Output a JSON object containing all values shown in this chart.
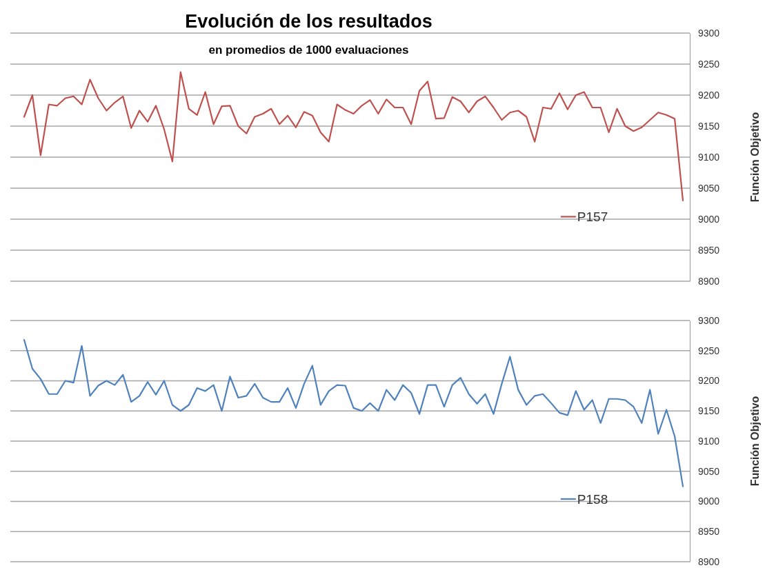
{
  "chart_data": [
    {
      "type": "line",
      "title": "Evolución de los resultados",
      "subtitle": "en promedios de 1000 evaluaciones",
      "ylabel": "Función Objetivo",
      "categories": [
        null,
        null,
        null,
        null,
        null,
        null,
        null,
        null,
        null,
        null,
        null,
        null,
        null,
        null,
        null,
        null,
        null,
        null,
        null,
        null,
        null,
        null,
        null,
        null,
        null,
        null,
        null,
        null,
        null,
        null,
        null,
        null,
        null,
        null,
        null,
        null,
        null,
        null,
        null,
        null,
        null,
        null,
        null,
        null,
        null,
        null,
        null,
        null,
        null,
        null,
        null,
        null,
        null,
        null,
        null,
        null,
        null,
        null,
        null,
        null,
        null,
        null,
        null,
        null,
        null,
        null,
        null,
        null,
        null,
        null,
        null,
        null,
        null,
        null,
        null,
        null,
        null,
        null,
        null,
        null,
        null
      ],
      "series": [
        {
          "name": "P157",
          "color": "#c0504d",
          "values": [
            9165,
            9200,
            9103,
            9185,
            9183,
            9195,
            9198,
            9185,
            9225,
            9195,
            9175,
            9188,
            9198,
            9147,
            9175,
            9157,
            9183,
            9145,
            9093,
            9237,
            9178,
            9168,
            9205,
            9153,
            9182,
            9183,
            9150,
            9138,
            9165,
            9170,
            9178,
            9153,
            9167,
            9148,
            9173,
            9167,
            9140,
            9125,
            9185,
            9176,
            9170,
            9183,
            9192,
            9170,
            9193,
            9180,
            9180,
            9153,
            9207,
            9222,
            9162,
            9163,
            9197,
            9190,
            9172,
            9190,
            9198,
            9180,
            9160,
            9172,
            9175,
            9165,
            9125,
            9180,
            9178,
            9203,
            9177,
            9200,
            9205,
            9180,
            9180,
            9140,
            9178,
            9150,
            9142,
            9148,
            9160,
            9172,
            9168,
            9162,
            9030
          ]
        }
      ],
      "ylim": [
        8900,
        9300
      ],
      "yticks": [
        8900,
        8950,
        9000,
        9050,
        9100,
        9150,
        9200,
        9250,
        9300
      ],
      "grid": "y",
      "legend": "bottom right",
      "marker": "none",
      "line_style": "solid"
    },
    {
      "type": "line",
      "ylabel": "Función Objetivo",
      "categories": [
        null,
        null,
        null,
        null,
        null,
        null,
        null,
        null,
        null,
        null,
        null,
        null,
        null,
        null,
        null,
        null,
        null,
        null,
        null,
        null,
        null,
        null,
        null,
        null,
        null,
        null,
        null,
        null,
        null,
        null,
        null,
        null,
        null,
        null,
        null,
        null,
        null,
        null,
        null,
        null,
        null,
        null,
        null,
        null,
        null,
        null,
        null,
        null,
        null,
        null,
        null,
        null,
        null,
        null,
        null,
        null,
        null,
        null,
        null,
        null,
        null,
        null,
        null,
        null,
        null,
        null,
        null,
        null,
        null,
        null,
        null,
        null,
        null,
        null,
        null,
        null,
        null,
        null,
        null,
        null,
        null
      ],
      "series": [
        {
          "name": "P158",
          "color": "#4f81bd",
          "values": [
            9268,
            9220,
            9203,
            9178,
            9178,
            9200,
            9197,
            9258,
            9175,
            9192,
            9200,
            9193,
            9210,
            9165,
            9175,
            9198,
            9177,
            9200,
            9160,
            9150,
            9160,
            9188,
            9183,
            9193,
            9150,
            9207,
            9172,
            9175,
            9195,
            9172,
            9165,
            9165,
            9188,
            9155,
            9195,
            9225,
            9160,
            9183,
            9193,
            9192,
            9155,
            9150,
            9163,
            9150,
            9185,
            9168,
            9193,
            9180,
            9145,
            9193,
            9193,
            9157,
            9193,
            9205,
            9178,
            9162,
            9178,
            9145,
            9195,
            9240,
            9185,
            9160,
            9175,
            9178,
            9163,
            9147,
            9143,
            9183,
            9152,
            9168,
            9130,
            9170,
            9170,
            9168,
            9157,
            9130,
            9185,
            9112,
            9152,
            9108,
            9025
          ]
        }
      ],
      "ylim": [
        8900,
        9300
      ],
      "yticks": [
        8900,
        8950,
        9000,
        9050,
        9100,
        9150,
        9200,
        9250,
        9300
      ],
      "grid": "y",
      "legend": "bottom right",
      "marker": "none",
      "line_style": "solid"
    }
  ]
}
